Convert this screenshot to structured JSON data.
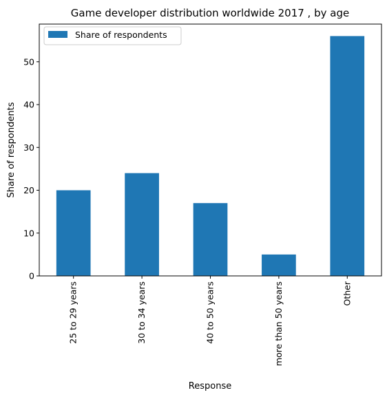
{
  "chart_data": {
    "type": "bar",
    "title": "Game developer distribution worldwide 2017 , by age",
    "xlabel": "Response",
    "ylabel": "Share of respondents",
    "categories": [
      "25 to 29 years",
      "30 to 34 years",
      "40 to 50 years",
      "more than 50 years",
      "Other"
    ],
    "series": [
      {
        "name": "Share of respondents",
        "values": [
          20,
          24,
          17,
          5,
          56
        ],
        "color": "#1f77b4"
      }
    ],
    "ylim": [
      0,
      58.8
    ],
    "yticks": [
      0,
      10,
      20,
      30,
      40,
      50
    ],
    "grid": false,
    "legend": "top-left"
  }
}
